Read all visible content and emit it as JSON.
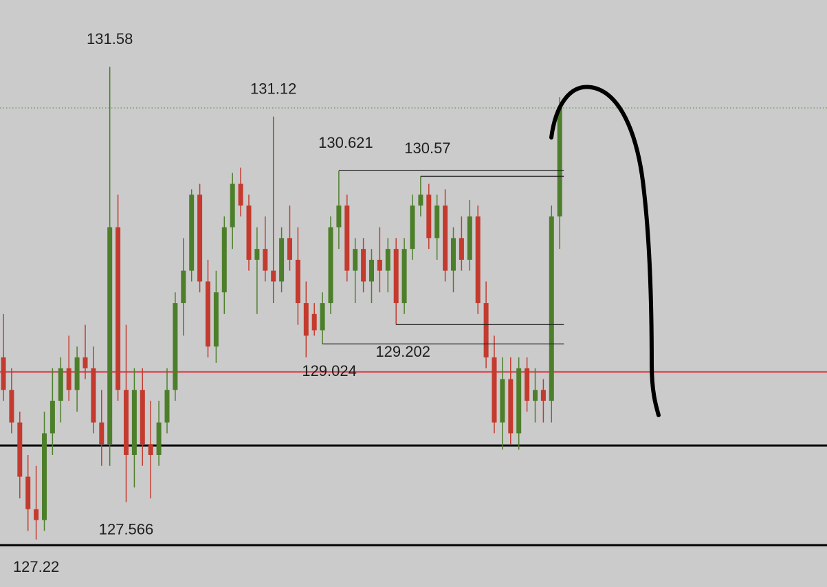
{
  "chart_data": {
    "type": "candlestick",
    "ylim": [
      126.783,
      132.195
    ],
    "up_color": "#4d7f2b",
    "down_color": "#c43a2e",
    "open": [
      128.9,
      128.6,
      128.3,
      127.8,
      127.5,
      127.4,
      128.2,
      128.5,
      128.8,
      128.6,
      128.9,
      128.8,
      128.3,
      128.1,
      130.1,
      128.6,
      128.0,
      128.6,
      128.1,
      128.0,
      128.3,
      128.6,
      129.4,
      129.7,
      130.4,
      129.6,
      129.0,
      129.5,
      130.1,
      130.5,
      130.3,
      129.8,
      129.9,
      129.7,
      129.6,
      130.0,
      129.8,
      129.4,
      129.3,
      129.15,
      129.4,
      130.1,
      130.3,
      129.7,
      129.9,
      129.6,
      129.8,
      129.7,
      129.9,
      129.4,
      129.9,
      130.3,
      130.4,
      130.0,
      130.3,
      129.7,
      130.0,
      129.8,
      130.2,
      129.4,
      128.9,
      128.3,
      128.7,
      128.2,
      128.8,
      128.5,
      128.6,
      128.5,
      130.2
    ],
    "high": [
      129.3,
      128.8,
      128.4,
      128.0,
      127.9,
      128.4,
      128.8,
      128.9,
      129.1,
      129.0,
      129.2,
      129.0,
      128.6,
      131.58,
      130.4,
      129.2,
      128.8,
      128.8,
      128.5,
      128.5,
      128.8,
      129.5,
      130.0,
      130.45,
      130.5,
      129.8,
      129.7,
      130.2,
      130.6,
      130.65,
      130.4,
      130.1,
      130.2,
      131.12,
      130.1,
      130.3,
      130.1,
      129.6,
      129.4,
      129.5,
      130.2,
      130.621,
      130.4,
      130.0,
      130.0,
      129.9,
      130.1,
      130.0,
      130.0,
      130.0,
      130.4,
      130.57,
      130.5,
      130.4,
      130.45,
      130.1,
      130.2,
      130.35,
      130.3,
      129.6,
      129.1,
      128.9,
      128.9,
      128.9,
      128.9,
      128.8,
      128.7,
      130.3,
      131.3
    ],
    "low": [
      128.5,
      128.2,
      127.6,
      127.3,
      127.22,
      127.3,
      128.0,
      128.3,
      128.5,
      128.4,
      128.7,
      128.2,
      127.9,
      127.9,
      128.5,
      127.566,
      127.7,
      127.9,
      127.6,
      127.9,
      128.2,
      128.5,
      129.1,
      129.6,
      129.5,
      128.9,
      128.85,
      129.3,
      129.9,
      130.2,
      129.7,
      129.3,
      129.6,
      129.4,
      129.5,
      129.7,
      129.2,
      128.9,
      129.1,
      129.024,
      129.3,
      129.9,
      129.6,
      129.4,
      129.5,
      129.4,
      129.5,
      129.5,
      129.202,
      129.3,
      129.8,
      130.2,
      129.9,
      129.8,
      129.6,
      129.5,
      129.7,
      129.7,
      129.3,
      128.8,
      128.2,
      128.05,
      128.1,
      128.05,
      128.4,
      128.3,
      128.3,
      128.3,
      129.9
    ],
    "close": [
      128.6,
      128.3,
      127.8,
      127.5,
      127.4,
      128.2,
      128.5,
      128.8,
      128.6,
      128.9,
      128.8,
      128.3,
      128.1,
      130.1,
      128.6,
      128.0,
      128.6,
      128.1,
      128.0,
      128.3,
      128.6,
      129.4,
      129.7,
      130.4,
      129.6,
      129.0,
      129.5,
      130.1,
      130.5,
      130.3,
      129.8,
      129.9,
      129.7,
      129.6,
      130.0,
      129.8,
      129.4,
      129.1,
      129.15,
      129.4,
      130.1,
      130.3,
      129.7,
      129.9,
      129.6,
      129.8,
      129.7,
      129.9,
      129.4,
      129.9,
      130.3,
      130.4,
      130.0,
      130.3,
      129.7,
      130.0,
      129.8,
      130.2,
      129.4,
      128.9,
      128.3,
      128.7,
      128.2,
      128.8,
      128.5,
      128.6,
      128.5,
      130.2,
      131.2
    ],
    "annotations": [
      {
        "value": 131.58,
        "ray": false
      },
      {
        "value": 131.12,
        "ray": false
      },
      {
        "value": 130.621,
        "ray": true
      },
      {
        "value": 130.57,
        "ray": true
      },
      {
        "value": 129.202,
        "ray": true
      },
      {
        "value": 129.024,
        "ray": true
      },
      {
        "value": 127.566,
        "ray": false
      },
      {
        "value": 127.22,
        "ray": false
      }
    ],
    "hlines": [
      {
        "value": 131.2,
        "color": "#5e9a4c",
        "style": "dotted"
      },
      {
        "value": 128.766,
        "color": "#d8505a",
        "style": "solid"
      },
      {
        "value": 128.088,
        "color": "#000000",
        "style": "solid"
      },
      {
        "value": 127.169,
        "color": "#000000",
        "style": "solid"
      }
    ]
  }
}
